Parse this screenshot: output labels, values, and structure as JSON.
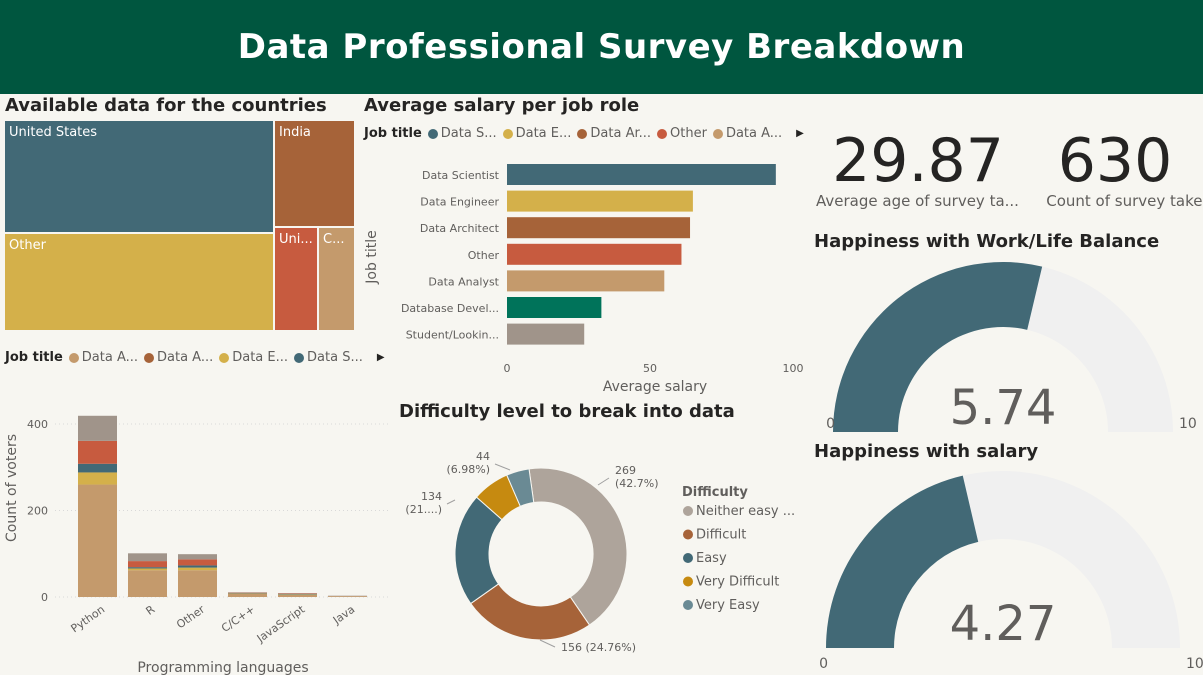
{
  "header": {
    "title": "Data Professional Survey Breakdown"
  },
  "treemap": {
    "title": "Available data for the countries",
    "cells": [
      {
        "label": "United States",
        "color": "#426976"
      },
      {
        "label": "India",
        "color": "#a66339"
      },
      {
        "label": "Other",
        "color": "#d4b04a"
      },
      {
        "label": "Uni...",
        "color": "#c75b3f"
      },
      {
        "label": "C...",
        "color": "#c49a6c"
      }
    ]
  },
  "stacked_legend": {
    "title": "Job title",
    "items": [
      {
        "label": "Data A...",
        "color": "#c49a6c"
      },
      {
        "label": "Data A...",
        "color": "#a66339"
      },
      {
        "label": "Data E...",
        "color": "#d4b04a"
      },
      {
        "label": "Data S...",
        "color": "#426976"
      }
    ]
  },
  "salary_legend": {
    "title": "Job title",
    "items": [
      {
        "label": "Data S...",
        "color": "#426976"
      },
      {
        "label": "Data E...",
        "color": "#d4b04a"
      },
      {
        "label": "Data Ar...",
        "color": "#a66339"
      },
      {
        "label": "Other",
        "color": "#c75b3f"
      },
      {
        "label": "Data A...",
        "color": "#c49a6c"
      }
    ]
  },
  "salary_title": "Average salary per job role",
  "donut_title": "Difficulty level to break into data",
  "kpis": [
    {
      "value": "29.87",
      "label": "Average age of survey ta..."
    },
    {
      "value": "630",
      "label": "Count of survey take..."
    }
  ],
  "gauges": [
    {
      "title": "Happiness with Work/Life Balance",
      "value": 5.74,
      "value_label": "5.74",
      "min_label": "0",
      "max_label": "10",
      "min": 0,
      "max": 10,
      "fill": "#426976",
      "track": "#f0f0f0"
    },
    {
      "title": "Happiness with salary",
      "value": 4.27,
      "value_label": "4.27",
      "min_label": "0",
      "max_label": "10",
      "min": 0,
      "max": 10,
      "fill": "#426976",
      "track": "#f0f0f0"
    }
  ],
  "chart_data": [
    {
      "type": "bar",
      "orientation": "horizontal",
      "categories": [
        "Data Scientist",
        "Data Engineer",
        "Data Architect",
        "Other",
        "Data Analyst",
        "Database Devel...",
        "Student/Lookin..."
      ],
      "values": [
        94,
        65,
        64,
        61,
        55,
        33,
        27
      ],
      "colors": [
        "#426976",
        "#d4b04a",
        "#a66339",
        "#c75b3f",
        "#c49a6c",
        "#00735a",
        "#a0948a"
      ],
      "xlabel": "Average salary",
      "ylabel": "Job title",
      "xlim": [
        0,
        100
      ],
      "xticks": [
        "0",
        "50",
        "100"
      ]
    },
    {
      "type": "bar",
      "stacked": true,
      "categories": [
        "Python",
        "R",
        "Other",
        "C/C++",
        "JavaScript",
        "Java"
      ],
      "series": [
        {
          "values": [
            260,
            62,
            62,
            7,
            5,
            2
          ],
          "color": "#c49a6c"
        },
        {
          "values": [
            28,
            4,
            6,
            1,
            1,
            0
          ],
          "color": "#d4b04a"
        },
        {
          "values": [
            20,
            3,
            5,
            1,
            1,
            0
          ],
          "color": "#426976"
        },
        {
          "values": [
            53,
            14,
            14,
            1,
            1,
            0
          ],
          "color": "#c75b3f"
        },
        {
          "values": [
            58,
            18,
            12,
            1,
            1,
            1
          ],
          "color": "#a0948a"
        }
      ],
      "xlabel": "Programming languages",
      "ylabel": "Count of voters",
      "ylim": [
        0,
        450
      ],
      "yticks": [
        "0",
        "200",
        "400"
      ]
    },
    {
      "type": "pie",
      "donut": true,
      "legend_title": "Difficulty",
      "slices": [
        {
          "label": "Neither easy ...",
          "value": 269,
          "value_label": "269",
          "pct_label": "(42.7%)",
          "color": "#aea49b"
        },
        {
          "label": "Difficult",
          "value": 156,
          "value_label": "156",
          "pct_label": "(24.76%)",
          "color": "#a66339"
        },
        {
          "label": "Easy",
          "value": 134,
          "value_label": "134",
          "pct_label": "(21....)",
          "color": "#426976"
        },
        {
          "label": "Very Difficult",
          "value": 44,
          "value_label": "44",
          "pct_label": "(6.98%)",
          "color": "#c68a10"
        },
        {
          "label": "Very Easy",
          "value": 27,
          "color": "#6a8a94"
        }
      ]
    }
  ]
}
